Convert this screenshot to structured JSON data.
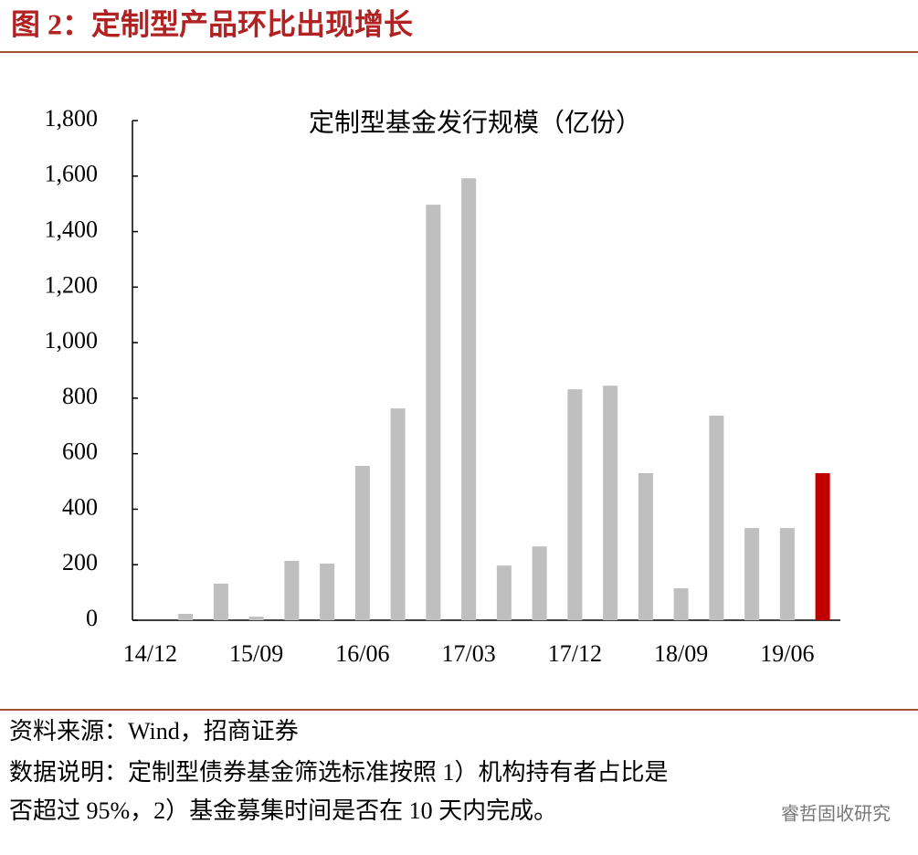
{
  "header": {
    "title": "图 2：定制型产品环比出现增长"
  },
  "chart_data": {
    "type": "bar",
    "title": "定制型基金发行规模（亿份）",
    "categories": [
      "14/12",
      null,
      null,
      "15/09",
      null,
      null,
      "16/06",
      null,
      null,
      "17/03",
      null,
      null,
      "17/12",
      null,
      null,
      "18/09",
      null,
      null,
      "19/06",
      null
    ],
    "values": [
      0,
      23,
      132,
      13,
      214,
      204,
      556,
      763,
      1497,
      1592,
      197,
      266,
      832,
      845,
      530,
      115,
      737,
      332,
      332,
      530
    ],
    "colors": [
      "#bfbfbf",
      "#bfbfbf",
      "#bfbfbf",
      "#bfbfbf",
      "#bfbfbf",
      "#bfbfbf",
      "#bfbfbf",
      "#bfbfbf",
      "#bfbfbf",
      "#bfbfbf",
      "#bfbfbf",
      "#bfbfbf",
      "#bfbfbf",
      "#bfbfbf",
      "#bfbfbf",
      "#bfbfbf",
      "#bfbfbf",
      "#bfbfbf",
      "#bfbfbf",
      "#c00000"
    ],
    "ylim": [
      0,
      1800
    ],
    "yticks": [
      0,
      200,
      400,
      600,
      800,
      {
        "value": 1000,
        "label": "1,000"
      },
      {
        "value": 1200,
        "label": "1,200"
      },
      {
        "value": 1400,
        "label": "1,400"
      },
      {
        "value": 1600,
        "label": "1,600"
      },
      {
        "value": 1800,
        "label": "1,800"
      }
    ],
    "grid": false
  },
  "footer": {
    "notes": [
      "资料来源：Wind，招商证券",
      "数据说明：定制型债券基金筛选标准按照 1）机构持有者占比是",
      "否超过 95%，2）基金募集时间是否在 10 天内完成。"
    ],
    "watermark": "睿哲固收研究"
  }
}
